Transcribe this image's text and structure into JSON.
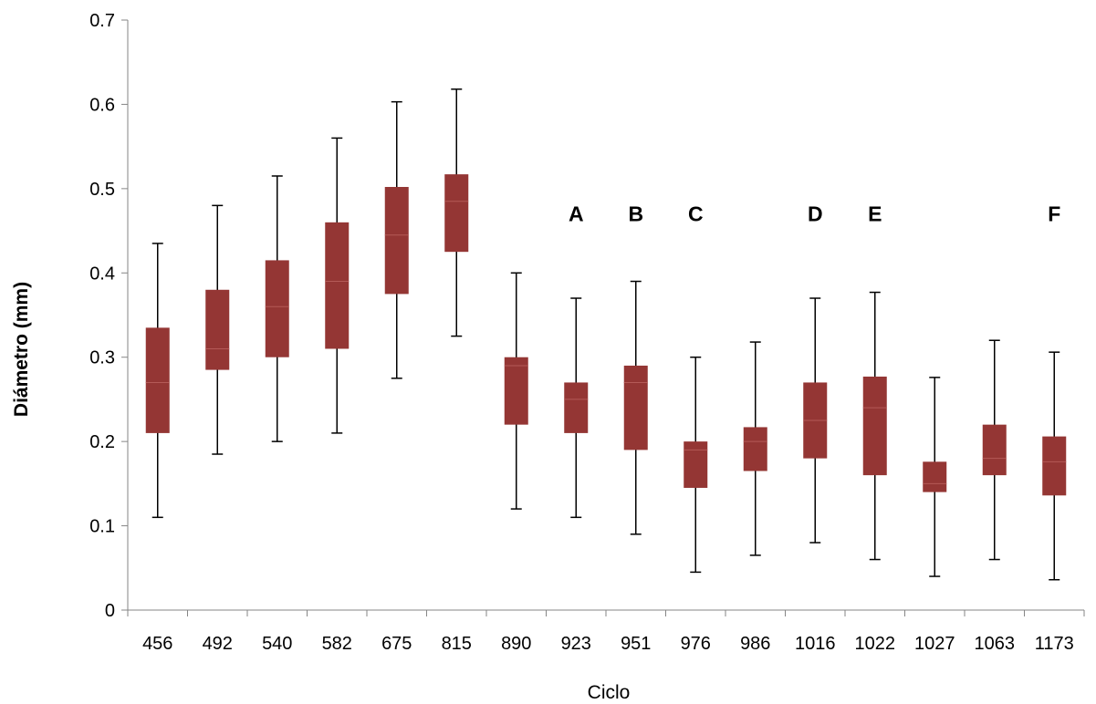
{
  "chart_data": {
    "type": "box",
    "title": "",
    "xlabel": "Ciclo",
    "ylabel": "Diámetro (mm)",
    "ylim": [
      0,
      0.7
    ],
    "yticks": [
      "0",
      "0.1",
      "0.2",
      "0.3",
      "0.4",
      "0.5",
      "0.6",
      "0.7"
    ],
    "grid": false,
    "box_color": "#943634",
    "median_color": "#B45A57",
    "categories": [
      "456",
      "492",
      "540",
      "582",
      "675",
      "815",
      "890",
      "923",
      "951",
      "976",
      "986",
      "1016",
      "1022",
      "1027",
      "1063",
      "1173"
    ],
    "boxes": [
      {
        "min": 0.11,
        "q1": 0.21,
        "median": 0.27,
        "q3": 0.335,
        "max": 0.435
      },
      {
        "min": 0.185,
        "q1": 0.285,
        "median": 0.31,
        "q3": 0.38,
        "max": 0.48
      },
      {
        "min": 0.2,
        "q1": 0.3,
        "median": 0.36,
        "q3": 0.415,
        "max": 0.515
      },
      {
        "min": 0.21,
        "q1": 0.31,
        "median": 0.39,
        "q3": 0.46,
        "max": 0.56
      },
      {
        "min": 0.275,
        "q1": 0.375,
        "median": 0.445,
        "q3": 0.502,
        "max": 0.603
      },
      {
        "min": 0.325,
        "q1": 0.425,
        "median": 0.485,
        "q3": 0.517,
        "max": 0.618
      },
      {
        "min": 0.12,
        "q1": 0.22,
        "median": 0.29,
        "q3": 0.3,
        "max": 0.4
      },
      {
        "min": 0.11,
        "q1": 0.21,
        "median": 0.25,
        "q3": 0.27,
        "max": 0.37
      },
      {
        "min": 0.09,
        "q1": 0.19,
        "median": 0.27,
        "q3": 0.29,
        "max": 0.39
      },
      {
        "min": 0.045,
        "q1": 0.145,
        "median": 0.19,
        "q3": 0.2,
        "max": 0.3
      },
      {
        "min": 0.065,
        "q1": 0.165,
        "median": 0.2,
        "q3": 0.217,
        "max": 0.318
      },
      {
        "min": 0.08,
        "q1": 0.18,
        "median": 0.225,
        "q3": 0.27,
        "max": 0.37
      },
      {
        "min": 0.06,
        "q1": 0.16,
        "median": 0.24,
        "q3": 0.277,
        "max": 0.377
      },
      {
        "min": 0.04,
        "q1": 0.14,
        "median": 0.15,
        "q3": 0.176,
        "max": 0.276
      },
      {
        "min": 0.06,
        "q1": 0.16,
        "median": 0.18,
        "q3": 0.22,
        "max": 0.32
      },
      {
        "min": 0.036,
        "q1": 0.136,
        "median": 0.176,
        "q3": 0.206,
        "max": 0.306
      }
    ],
    "annotations": [
      {
        "category": "923",
        "text": "A"
      },
      {
        "category": "951",
        "text": "B"
      },
      {
        "category": "976",
        "text": "C"
      },
      {
        "category": "1016",
        "text": "D"
      },
      {
        "category": "1022",
        "text": "E"
      },
      {
        "category": "1173",
        "text": "F"
      }
    ],
    "annotation_y": 0.47
  }
}
